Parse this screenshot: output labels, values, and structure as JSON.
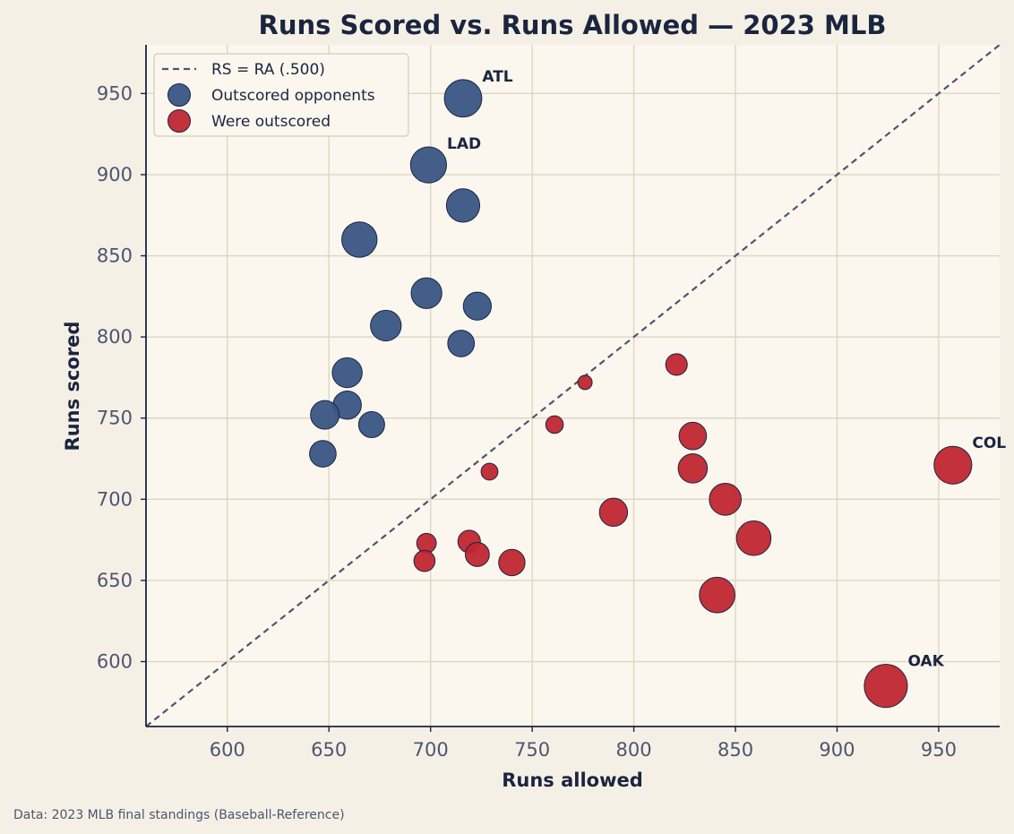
{
  "chart_data": {
    "type": "scatter",
    "title": "Runs Scored vs. Runs Allowed — 2023 MLB",
    "xlabel": "Runs allowed",
    "ylabel": "Runs scored",
    "xlim": [
      560,
      980
    ],
    "ylim": [
      560,
      980
    ],
    "xticks": [
      600,
      650,
      700,
      750,
      800,
      850,
      900,
      950
    ],
    "yticks": [
      600,
      650,
      700,
      750,
      800,
      850,
      900,
      950
    ],
    "grid": true,
    "legend_position": "top-left",
    "reference_line": {
      "name": "RS = RA (.500)",
      "color": "#4d5570",
      "style": "dashed"
    },
    "series": [
      {
        "name": "Outscored opponents",
        "color": "#3a5584",
        "points": [
          {
            "x": 716,
            "y": 947,
            "label": "ATL"
          },
          {
            "x": 699,
            "y": 906,
            "label": "LAD"
          },
          {
            "x": 716,
            "y": 881
          },
          {
            "x": 665,
            "y": 860
          },
          {
            "x": 698,
            "y": 827
          },
          {
            "x": 723,
            "y": 819
          },
          {
            "x": 678,
            "y": 807
          },
          {
            "x": 715,
            "y": 796
          },
          {
            "x": 659,
            "y": 778
          },
          {
            "x": 659,
            "y": 758
          },
          {
            "x": 648,
            "y": 752
          },
          {
            "x": 671,
            "y": 746
          },
          {
            "x": 647,
            "y": 728
          }
        ]
      },
      {
        "name": "Were outscored",
        "color": "#c0262f",
        "points": [
          {
            "x": 821,
            "y": 783
          },
          {
            "x": 776,
            "y": 772
          },
          {
            "x": 761,
            "y": 746
          },
          {
            "x": 829,
            "y": 739
          },
          {
            "x": 957,
            "y": 721,
            "label": "COL"
          },
          {
            "x": 829,
            "y": 719
          },
          {
            "x": 729,
            "y": 717
          },
          {
            "x": 845,
            "y": 700
          },
          {
            "x": 790,
            "y": 692
          },
          {
            "x": 859,
            "y": 676
          },
          {
            "x": 719,
            "y": 674
          },
          {
            "x": 698,
            "y": 673
          },
          {
            "x": 723,
            "y": 666
          },
          {
            "x": 697,
            "y": 662
          },
          {
            "x": 740,
            "y": 661
          },
          {
            "x": 841,
            "y": 641
          },
          {
            "x": 924,
            "y": 585,
            "label": "OAK"
          }
        ]
      }
    ]
  },
  "caption": "Data: 2023 MLB final standings (Baseball-Reference)"
}
